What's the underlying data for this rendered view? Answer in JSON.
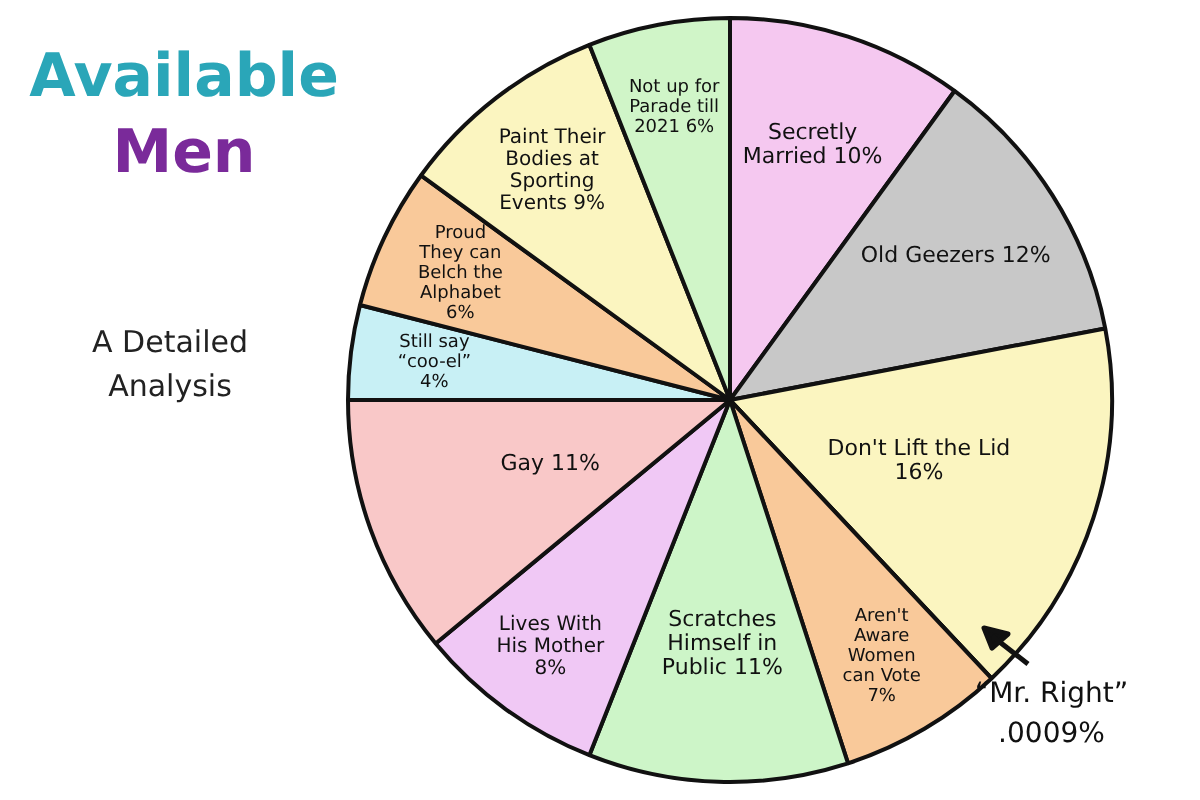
{
  "chart_data": {
    "type": "pie",
    "title": "Available Men",
    "subtitle": "A Detailed Analysis",
    "categories": [
      "Secretly Married",
      "Old Geezers",
      "Don't Lift the Lid",
      "“Mr. Right”",
      "Aren't Aware Women can Vote",
      "Scratches Himself in Public",
      "Lives With His Mother",
      "Gay",
      "Still say “coo-el”",
      "Proud They can Belch the Alphabet",
      "Paint Their Bodies at Sporting Events",
      "Not up for Parade till 2021"
    ],
    "values": [
      10,
      12,
      16,
      0.0009,
      7,
      11,
      8,
      11,
      4,
      6,
      9,
      6
    ],
    "value_labels": [
      "10%",
      "12%",
      "16%",
      ".0009%",
      "7%",
      "11%",
      "8%",
      "11%",
      "4%",
      "6%",
      "9%",
      "6%"
    ],
    "colors": [
      "#f5c8f0",
      "#c8c8c8",
      "#fbf5c0",
      "#e02020",
      "#f9c99a",
      "#cdf5c8",
      "#f0c8f5",
      "#f9c8c8",
      "#c8f0f5",
      "#f9c99a",
      "#fbf5c0",
      "#d0f5c8"
    ],
    "legend": false
  }
}
